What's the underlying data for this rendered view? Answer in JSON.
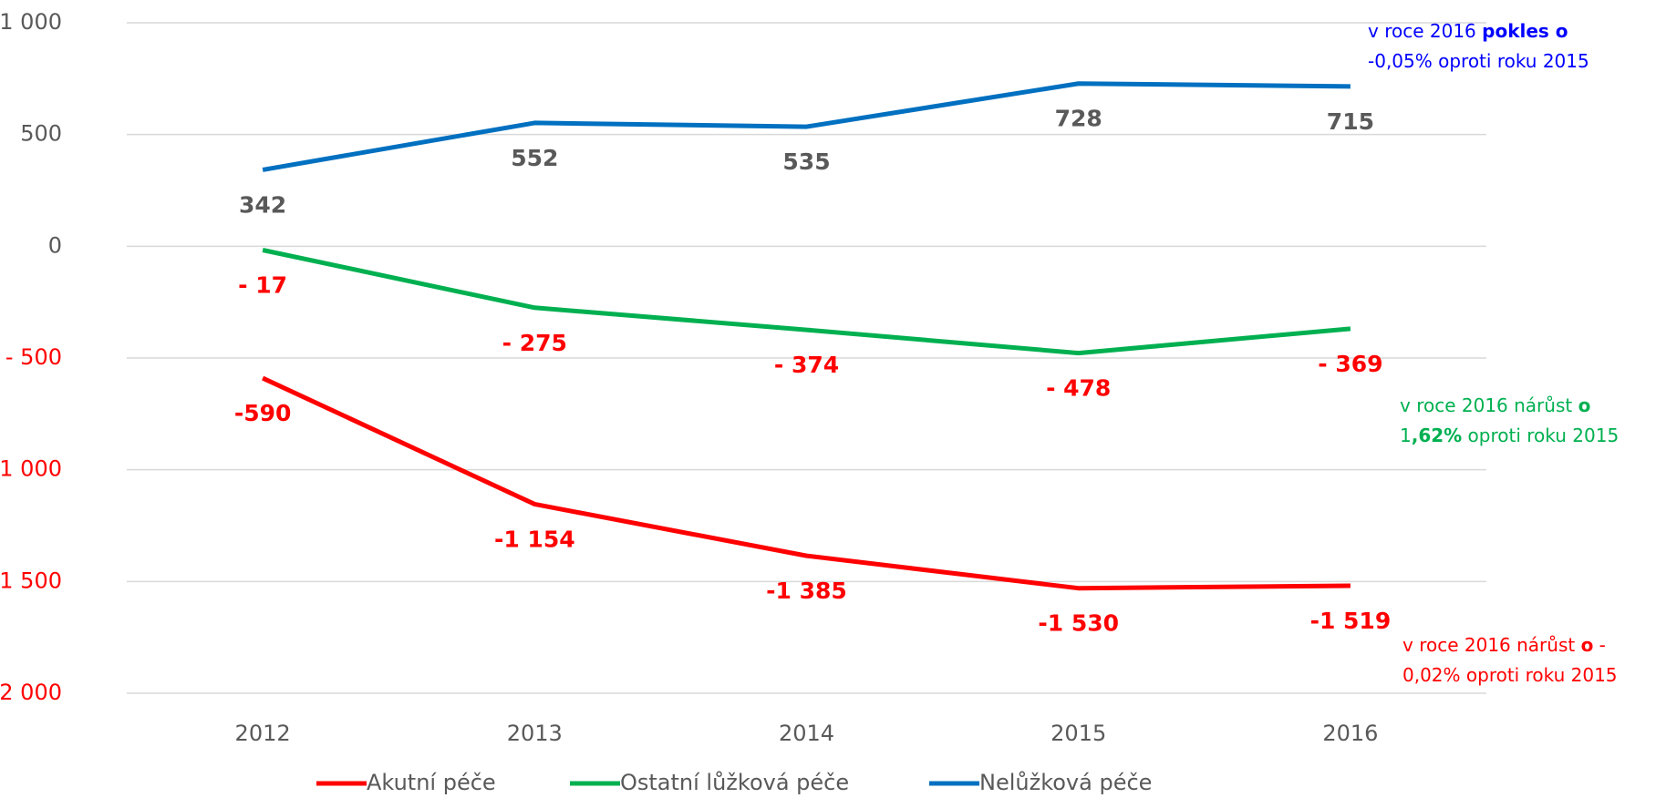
{
  "chart_data": {
    "type": "line",
    "categories": [
      "2012",
      "2013",
      "2014",
      "2015",
      "2016"
    ],
    "series": [
      {
        "name": "Akutní péče",
        "color": "#ff0000",
        "label_color": "#ff0000",
        "values": [
          -590,
          -1154,
          -1385,
          -1530,
          -1519
        ],
        "value_labels": [
          "-590",
          "-1 154",
          "-1 385",
          "-1 530",
          "-1 519"
        ]
      },
      {
        "name": "Ostatní lůžková péče",
        "color": "#00b050",
        "label_color": "#ff0000",
        "values": [
          -17,
          -275,
          -374,
          -478,
          -369
        ],
        "value_labels": [
          "- 17",
          "- 275",
          "- 374",
          "- 478",
          "- 369"
        ]
      },
      {
        "name": "Nelůžková péče",
        "color": "#0070c0",
        "label_color": "#595959",
        "values": [
          342,
          552,
          535,
          728,
          715
        ]
      }
    ],
    "ylim": [
      -2000,
      1000
    ],
    "yticks": [
      {
        "value": 1000,
        "label": "1 000"
      },
      500,
      0,
      {
        "value": -500,
        "label": "- 500"
      },
      {
        "value": -1000,
        "label": "-1 000"
      },
      {
        "value": -1500,
        "label": "-1 500"
      },
      {
        "value": -2000,
        "label": "-2 000"
      }
    ],
    "grid": true,
    "legend": "bottom",
    "annotations": [
      {
        "color": "#0000ff",
        "lines": [
          [
            {
              "text": "v roce 2016 ",
              "bold": false
            },
            {
              "text": "pokles o",
              "bold": true
            }
          ],
          [
            {
              "text": "-0,05% oproti roku 2015",
              "bold": false
            }
          ]
        ]
      },
      {
        "color": "#00b050",
        "lines": [
          [
            {
              "text": "v roce 2016 nárůst ",
              "bold": false
            },
            {
              "text": "o",
              "bold": true
            }
          ],
          [
            {
              "text": "1",
              "bold": false
            },
            {
              "text": ",62%",
              "bold": true
            },
            {
              "text": " oproti roku 2015",
              "bold": false
            }
          ]
        ]
      },
      {
        "color": "#ff0000",
        "lines": [
          [
            {
              "text": "v roce 2016 nárůst ",
              "bold": false
            },
            {
              "text": "o",
              "bold": true
            },
            {
              "text": " -",
              "bold": false
            }
          ],
          [
            {
              "text": "0,02% oproti roku 2015",
              "bold": false
            }
          ]
        ]
      }
    ]
  }
}
